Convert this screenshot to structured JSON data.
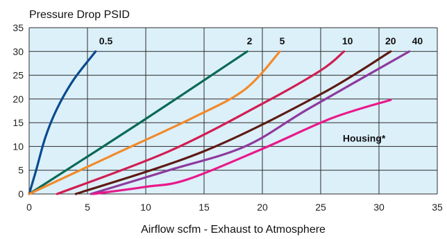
{
  "chart_data": {
    "type": "line",
    "title": "",
    "ylabel": "Pressure Drop PSID",
    "xlabel": "Airflow scfm - Exhaust to Atmosphere",
    "xlim": [
      0,
      35
    ],
    "ylim": [
      0,
      35
    ],
    "xticks": [
      0,
      5,
      10,
      15,
      20,
      25,
      30,
      35
    ],
    "yticks": [
      0,
      5,
      10,
      15,
      20,
      25,
      30,
      35
    ],
    "grid": true,
    "background": "#dcf0fa",
    "series": [
      {
        "name": "0.5",
        "color": "#0a4a8e",
        "points": [
          [
            0,
            0
          ],
          [
            0.6,
            5
          ],
          [
            1.4,
            12
          ],
          [
            2.4,
            18
          ],
          [
            3.8,
            24
          ],
          [
            5.7,
            30
          ]
        ]
      },
      {
        "name": "2",
        "color": "#0a6a55",
        "points": [
          [
            0,
            0
          ],
          [
            9.5,
            15
          ],
          [
            18.7,
            30
          ]
        ]
      },
      {
        "name": "5",
        "color": "#f28a2a",
        "points": [
          [
            0,
            0
          ],
          [
            7,
            8
          ],
          [
            14,
            16
          ],
          [
            18.5,
            22
          ],
          [
            21.5,
            30
          ]
        ]
      },
      {
        "name": "10",
        "color": "#d01f52",
        "points": [
          [
            2.4,
            0
          ],
          [
            12,
            9
          ],
          [
            20,
            19
          ],
          [
            25,
            26
          ],
          [
            27,
            30
          ]
        ]
      },
      {
        "name": "20",
        "color": "#5e1a14",
        "points": [
          [
            4,
            0
          ],
          [
            15,
            9
          ],
          [
            25,
            21
          ],
          [
            31,
            30
          ]
        ]
      },
      {
        "name": "40",
        "color": "#8d3a9e",
        "points": [
          [
            5.3,
            0
          ],
          [
            12,
            5
          ],
          [
            18.5,
            10
          ],
          [
            24,
            18
          ],
          [
            32.6,
            30
          ]
        ]
      },
      {
        "name": "Housing*",
        "color": "#e8198a",
        "points": [
          [
            5.5,
            0
          ],
          [
            10,
            1.5
          ],
          [
            13.5,
            3
          ],
          [
            20,
            9.5
          ],
          [
            26,
            16
          ],
          [
            31,
            19.8
          ]
        ]
      }
    ]
  }
}
